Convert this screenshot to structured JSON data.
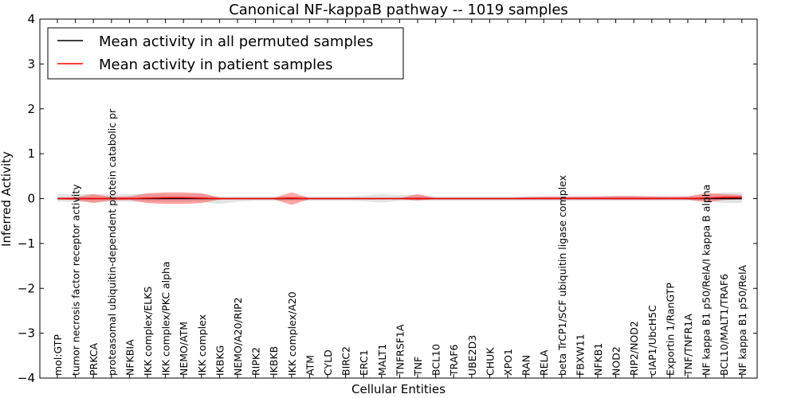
{
  "chart_data": {
    "type": "line",
    "title": "Canonical NF-kappaB pathway -- 1019 samples",
    "xlabel": "Cellular Entities",
    "ylabel": "Inferred Activity",
    "ylim": [
      -4,
      4
    ],
    "yticks": [
      -4,
      -3,
      -2,
      -1,
      0,
      1,
      2,
      3,
      4
    ],
    "ytick_labels": [
      "−4",
      "−3",
      "−2",
      "−1",
      "0",
      "1",
      "2",
      "3",
      "4"
    ],
    "legend_position": "top-left",
    "categories": [
      "mol:GTP",
      "tumor necrosis factor receptor activity",
      "PRKCA",
      "proteasomal ubiquitin-dependent protein catabolic pr",
      "NFKBIA",
      "IKK complex/ELKS",
      "IKK complex/PKC alpha",
      "NEMO/ATM",
      "IKK complex",
      "IKBKG",
      "NEMO/A20/RIP2",
      "RIPK2",
      "IKBKB",
      "IKK complex/A20",
      "ATM",
      "CYLD",
      "BIRC2",
      "ERC1",
      "MALT1",
      "TNFRSF1A",
      "TNF",
      "BCL10",
      "TRAF6",
      "UBE2D3",
      "CHUK",
      "XPO1",
      "RAN",
      "RELA",
      "beta TrCP1/SCF ubiquitin ligase complex",
      "FBXW11",
      "NFKB1",
      "NOD2",
      "RIP2/NOD2",
      "cIAP1/UbcH5C",
      "Exportin 1/RanGTP",
      "TNF/TNFR1A",
      "NF kappa B1 p50/RelA/I kappa B alpha",
      "BCL10/MALT1/TRAF6",
      "NF kappa B1 p50/RelA"
    ],
    "series": [
      {
        "name": "Mean activity in all permuted samples",
        "color": "#000000",
        "values": [
          0,
          0,
          0,
          0,
          0,
          0,
          0,
          0,
          0,
          0,
          0,
          0,
          0,
          0,
          0,
          0,
          0,
          0,
          0,
          0,
          0,
          0,
          0,
          0,
          0,
          0,
          0,
          0,
          0,
          0,
          0,
          0,
          0,
          0,
          0,
          0,
          0,
          0,
          0
        ],
        "band_low": [
          -0.07,
          -0.07,
          -0.07,
          -0.07,
          -0.07,
          -0.07,
          -0.07,
          -0.07,
          -0.07,
          -0.12,
          -0.07,
          -0.05,
          -0.05,
          -0.05,
          -0.05,
          -0.05,
          -0.05,
          -0.06,
          -0.09,
          -0.05,
          -0.05,
          -0.05,
          -0.05,
          -0.05,
          -0.05,
          -0.05,
          -0.05,
          -0.05,
          -0.05,
          -0.05,
          -0.05,
          -0.05,
          -0.05,
          -0.05,
          -0.05,
          -0.05,
          -0.06,
          -0.1,
          -0.1
        ],
        "band_high": [
          0.1,
          0.1,
          0.1,
          0.1,
          0.1,
          0.1,
          0.1,
          0.1,
          0.1,
          0.05,
          0.05,
          0.05,
          0.05,
          0.05,
          0.05,
          0.05,
          0.05,
          0.07,
          0.1,
          0.08,
          0.08,
          0.05,
          0.05,
          0.05,
          0.05,
          0.05,
          0.05,
          0.05,
          0.05,
          0.05,
          0.05,
          0.05,
          0.05,
          0.05,
          0.05,
          0.05,
          0.09,
          0.14,
          0.14
        ]
      },
      {
        "name": "Mean activity in patient samples",
        "color": "#ff0000",
        "values": [
          0,
          0,
          0,
          0,
          0,
          0.01,
          0.02,
          0.02,
          0.01,
          0,
          0,
          0,
          0,
          0.01,
          0,
          0,
          0,
          0,
          0,
          0,
          0,
          0,
          0,
          0,
          0,
          0,
          0,
          0,
          0,
          0,
          0,
          0,
          0,
          0,
          0,
          0,
          0.01,
          0.03,
          0.03
        ],
        "band_low": [
          -0.02,
          -0.03,
          -0.1,
          -0.04,
          -0.03,
          -0.1,
          -0.12,
          -0.12,
          -0.1,
          -0.02,
          -0.01,
          -0.01,
          -0.01,
          -0.14,
          -0.01,
          -0.01,
          -0.01,
          -0.01,
          -0.01,
          -0.01,
          -0.04,
          -0.01,
          -0.01,
          -0.01,
          -0.01,
          -0.01,
          -0.01,
          -0.01,
          -0.01,
          -0.01,
          -0.01,
          -0.02,
          -0.02,
          -0.02,
          -0.01,
          -0.02,
          -0.08,
          -0.03,
          -0.02
        ],
        "band_high": [
          0.02,
          0.03,
          0.1,
          0.04,
          0.05,
          0.12,
          0.14,
          0.14,
          0.12,
          0.02,
          0.01,
          0.01,
          0.01,
          0.14,
          0.01,
          0.01,
          0.01,
          0.01,
          0.01,
          0.01,
          0.1,
          0.01,
          0.01,
          0.01,
          0.01,
          0.01,
          0.03,
          0.04,
          0.04,
          0.04,
          0.05,
          0.06,
          0.06,
          0.05,
          0.04,
          0.05,
          0.12,
          0.1,
          0.08
        ]
      }
    ]
  }
}
